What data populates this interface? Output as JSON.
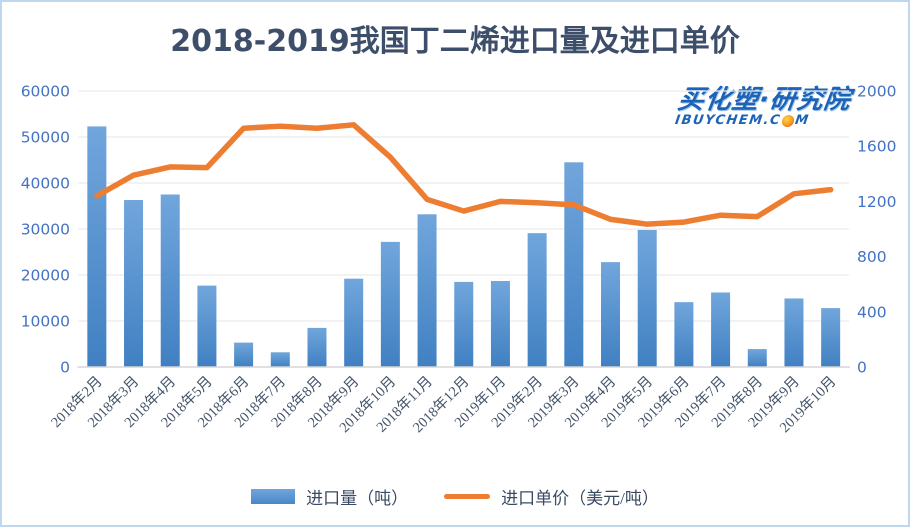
{
  "title": "2018-2019我国丁二烯进口量及进口单价",
  "logo": {
    "main": "买化塑·研究院",
    "sub_left": "IBUYCHEM.C",
    "sub_right": "M",
    "sub_full": "IBUYCHEM.COM"
  },
  "legend": {
    "bars": "进口量（吨）",
    "line": "进口单价（美元/吨）"
  },
  "chart_data": {
    "type": "bar",
    "subtype": "bar+line combo, dual axis",
    "title": "2018-2019我国丁二烯进口量及进口单价",
    "categories": [
      "2018年2月",
      "2018年3月",
      "2018年4月",
      "2018年5月",
      "2018年6月",
      "2018年7月",
      "2018年8月",
      "2018年9月",
      "2018年10月",
      "2018年11月",
      "2018年12月",
      "2019年1月",
      "2019年2月",
      "2019年3月",
      "2019年4月",
      "2019年5月",
      "2019年6月",
      "2019年7月",
      "2019年8月",
      "2019年9月",
      "2019年10月"
    ],
    "series": [
      {
        "name": "进口量（吨）",
        "type": "bar",
        "axis": "left",
        "values": [
          52300,
          36300,
          37500,
          17700,
          5300,
          3200,
          8500,
          19200,
          27200,
          33200,
          18500,
          18700,
          29100,
          44500,
          22800,
          29800,
          14100,
          16200,
          3900,
          14900,
          12800
        ]
      },
      {
        "name": "进口单价（美元/吨）",
        "type": "line",
        "axis": "right",
        "values": [
          1240,
          1390,
          1450,
          1445,
          1730,
          1745,
          1730,
          1755,
          1520,
          1215,
          1130,
          1200,
          1190,
          1175,
          1070,
          1035,
          1050,
          1100,
          1090,
          1255,
          1285
        ]
      }
    ],
    "left_axis": {
      "min": 0,
      "max": 60000,
      "step": 10000,
      "ticks": [
        0,
        10000,
        20000,
        30000,
        40000,
        50000,
        60000
      ]
    },
    "right_axis": {
      "min": 0,
      "max": 2000,
      "step": 400,
      "ticks": [
        0,
        400,
        800,
        1200,
        1600,
        2000
      ]
    },
    "xlabel": "",
    "ylabel_left": "进口量（吨）",
    "ylabel_right": "进口单价（美元/吨）",
    "grid": "horizontal gridlines aligned to left axis",
    "legend_position": "bottom",
    "x_label_rotation": -45
  },
  "colors": {
    "bar_top": "#71A6DC",
    "bar_bottom": "#4080C2",
    "line": "#ED7D31",
    "y_axis_labels": "#4472C4",
    "x_axis_labels": "#44546A",
    "title": "#3D4E6A",
    "gridline": "#EBEBEB",
    "axis_line": "#D6D6D6",
    "frame_border": "#BDD7EE",
    "logo_blue": "#1C63B7",
    "legend_text": "#3A4A63",
    "background": "#FFFFFF"
  }
}
